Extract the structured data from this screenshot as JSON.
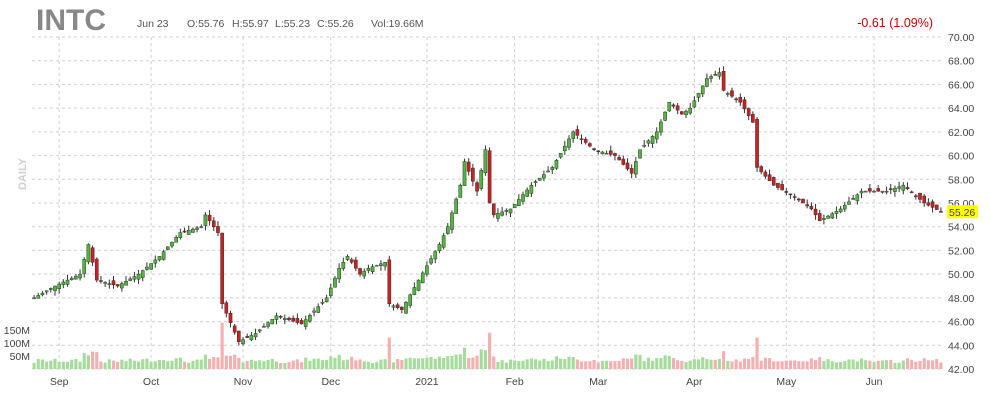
{
  "header": {
    "ticker": "INTC",
    "date": "Jun 23",
    "open": "O:55.76",
    "high": "H:55.97",
    "low": "L:55.23",
    "close": "C:55.26",
    "volume": "Vol:19.66M",
    "change": "-0.61 (1.09%)"
  },
  "side_label": "DAILY",
  "last_price_label": "55.26",
  "colors": {
    "up": "#4fb93c",
    "down": "#cc1f1f",
    "vol_up": "#a6dc9b",
    "vol_down": "#f3b0b0",
    "last_price_bg": "#ffff00",
    "change": "#cc0000"
  },
  "chart_data": {
    "type": "candlestick",
    "ylim": [
      42,
      70
    ],
    "y_ticks": [
      "42.00",
      "44.00",
      "46.00",
      "48.00",
      "50.00",
      "52.00",
      "54.00",
      "56.00",
      "58.00",
      "60.00",
      "62.00",
      "64.00",
      "66.00",
      "68.00",
      "70.00"
    ],
    "volume_ticks": [
      "50M",
      "100M",
      "150M"
    ],
    "x_labels": [
      "Sep",
      "Oct",
      "Nov",
      "Dec",
      "2021",
      "Feb",
      "Mar",
      "Apr",
      "May",
      "Jun"
    ],
    "last_close": 55.26,
    "anchors": [
      [
        "2020-08-24",
        48.0
      ],
      [
        "2020-08-31",
        49.0
      ],
      [
        "2020-09-08",
        50.0
      ],
      [
        "2020-09-10",
        52.5
      ],
      [
        "2020-09-14",
        49.5
      ],
      [
        "2020-09-21",
        49.0
      ],
      [
        "2020-09-28",
        50.0
      ],
      [
        "2020-10-05",
        51.5
      ],
      [
        "2020-10-12",
        53.5
      ],
      [
        "2020-10-19",
        54.0
      ],
      [
        "2020-10-20",
        55.0
      ],
      [
        "2020-10-23",
        53.5
      ],
      [
        "2020-10-26",
        47.5
      ],
      [
        "2020-10-30",
        44.3
      ],
      [
        "2020-11-05",
        45.0
      ],
      [
        "2020-11-12",
        46.5
      ],
      [
        "2020-11-20",
        45.8
      ],
      [
        "2020-11-30",
        48.0
      ],
      [
        "2020-12-03",
        50.5
      ],
      [
        "2020-12-07",
        51.5
      ],
      [
        "2020-12-10",
        50.0
      ],
      [
        "2020-12-14",
        50.5
      ],
      [
        "2020-12-18",
        51.0
      ],
      [
        "2020-12-21",
        47.5
      ],
      [
        "2020-12-24",
        47.0
      ],
      [
        "2020-12-30",
        49.5
      ],
      [
        "2021-01-06",
        52.5
      ],
      [
        "2021-01-08",
        54.0
      ],
      [
        "2021-01-13",
        57.5
      ],
      [
        "2021-01-14",
        59.5
      ],
      [
        "2021-01-19",
        57.0
      ],
      [
        "2021-01-21",
        60.5
      ],
      [
        "2021-01-22",
        56.0
      ],
      [
        "2021-01-25",
        55.0
      ],
      [
        "2021-01-29",
        55.5
      ],
      [
        "2021-02-05",
        57.5
      ],
      [
        "2021-02-12",
        59.0
      ],
      [
        "2021-02-19",
        62.0
      ],
      [
        "2021-02-26",
        60.5
      ],
      [
        "2021-03-05",
        60.0
      ],
      [
        "2021-03-11",
        58.5
      ],
      [
        "2021-03-15",
        60.5
      ],
      [
        "2021-03-19",
        62.0
      ],
      [
        "2021-03-24",
        64.5
      ],
      [
        "2021-03-29",
        63.5
      ],
      [
        "2021-03-31",
        64.0
      ],
      [
        "2021-04-06",
        66.5
      ],
      [
        "2021-04-09",
        67.0
      ],
      [
        "2021-04-12",
        65.5
      ],
      [
        "2021-04-16",
        64.5
      ],
      [
        "2021-04-21",
        62.8
      ],
      [
        "2021-04-22",
        59.0
      ],
      [
        "2021-04-28",
        57.5
      ],
      [
        "2021-05-05",
        56.5
      ],
      [
        "2021-05-11",
        55.5
      ],
      [
        "2021-05-13",
        54.5
      ],
      [
        "2021-05-20",
        55.5
      ],
      [
        "2021-05-27",
        57.0
      ],
      [
        "2021-06-04",
        57.0
      ],
      [
        "2021-06-10",
        57.5
      ],
      [
        "2021-06-17",
        56.0
      ],
      [
        "2021-06-23",
        55.26
      ]
    ]
  }
}
